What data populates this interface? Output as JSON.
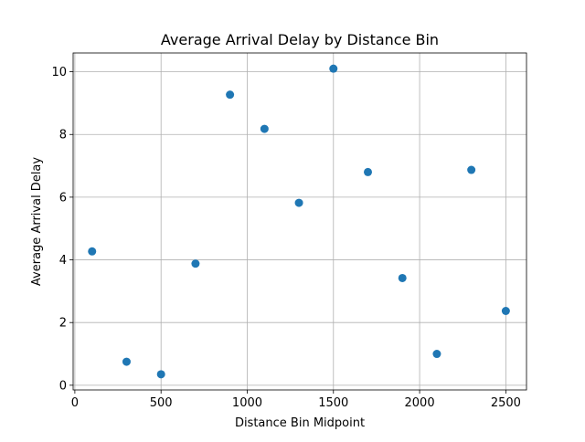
{
  "chart_data": {
    "type": "scatter",
    "title": "Average Arrival Delay by Distance Bin",
    "xlabel": "Distance Bin Midpoint",
    "ylabel": "Average Arrival Delay",
    "xlim": [
      -10,
      2620
    ],
    "ylim": [
      -0.15,
      10.6
    ],
    "xticks": [
      0,
      500,
      1000,
      1500,
      2000,
      2500
    ],
    "yticks": [
      0,
      2,
      4,
      6,
      8,
      10
    ],
    "grid": true,
    "marker_color": "#1f77b4",
    "x": [
      100,
      300,
      500,
      700,
      900,
      1100,
      1300,
      1500,
      1700,
      1900,
      2100,
      2300,
      2500
    ],
    "y": [
      4.27,
      0.75,
      0.35,
      3.88,
      9.27,
      8.18,
      5.82,
      10.1,
      6.8,
      3.42,
      1.0,
      6.87,
      2.37
    ]
  }
}
